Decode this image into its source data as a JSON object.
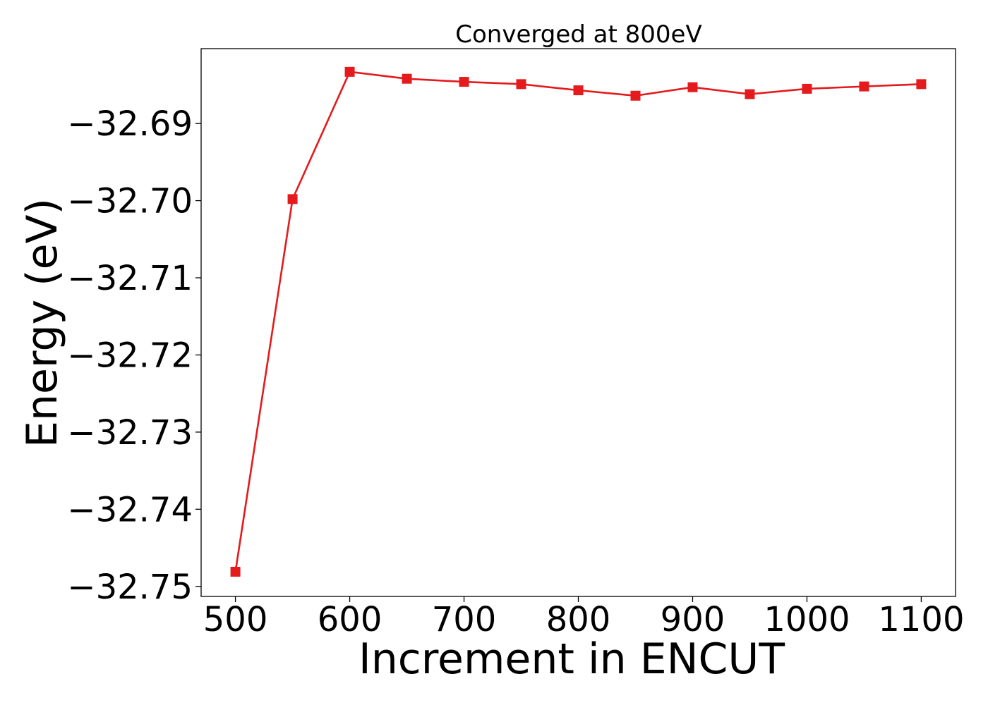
{
  "chart_data": {
    "type": "line",
    "title": "Converged at 800eV",
    "xlabel": "Increment in ENCUT",
    "ylabel": "Energy (eV)",
    "x": [
      500,
      550,
      600,
      650,
      700,
      750,
      800,
      850,
      900,
      950,
      1000,
      1050,
      1100
    ],
    "y": [
      -32.7481,
      -32.6998,
      -32.6833,
      -32.6842,
      -32.6846,
      -32.6849,
      -32.6857,
      -32.6864,
      -32.6853,
      -32.6862,
      -32.6855,
      -32.6852,
      -32.6849
    ],
    "xticks": [
      500,
      600,
      700,
      800,
      900,
      1000,
      1100
    ],
    "xtick_labels": [
      "500",
      "600",
      "700",
      "800",
      "900",
      "1000",
      "1100"
    ],
    "yticks": [
      -32.69,
      -32.7,
      -32.71,
      -32.72,
      -32.73,
      -32.74,
      -32.75
    ],
    "ytick_labels": [
      "−32.69",
      "−32.70",
      "−32.71",
      "−32.72",
      "−32.73",
      "−32.74",
      "−32.75"
    ],
    "xlim": [
      470,
      1130
    ],
    "ylim": [
      -32.7513,
      -32.6803
    ],
    "grid": false,
    "marker": "square",
    "line_color": "#e41a1c",
    "marker_color": "#e41a1c"
  }
}
